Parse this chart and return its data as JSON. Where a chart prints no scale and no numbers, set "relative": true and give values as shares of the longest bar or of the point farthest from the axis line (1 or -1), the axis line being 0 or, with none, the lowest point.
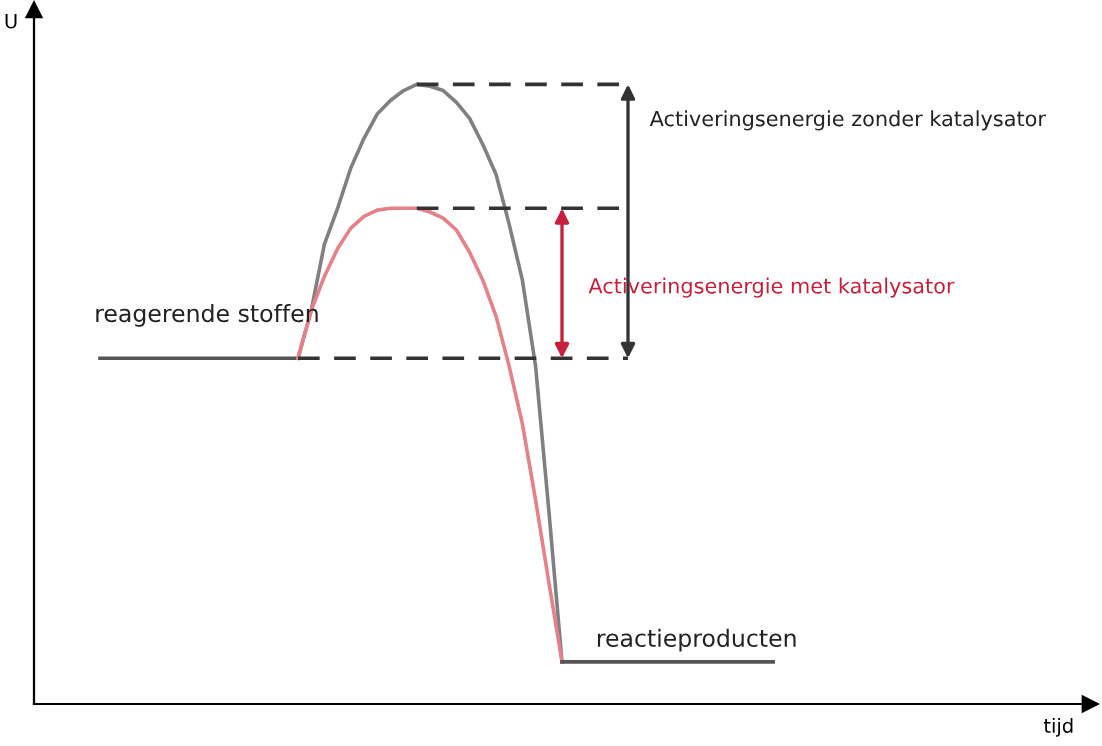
{
  "chart_data": {
    "type": "line",
    "relative": true,
    "xlabel": "tijd",
    "ylabel": "U",
    "categories": [
      null,
      null,
      null,
      null,
      null,
      null,
      null,
      null,
      null,
      null,
      null,
      null,
      null,
      null,
      null,
      null,
      null,
      null,
      null,
      null,
      null,
      null,
      null,
      null,
      null,
      null,
      null,
      null,
      null,
      null,
      null,
      null,
      null,
      null,
      null,
      null,
      null,
      null,
      null,
      null,
      null,
      null,
      null,
      null,
      null,
      null,
      null,
      null,
      null,
      null,
      null,
      null,
      null,
      null,
      null,
      null,
      null,
      null,
      null,
      null,
      null,
      null,
      null,
      null,
      null,
      null,
      null,
      null,
      null,
      null,
      null,
      null,
      null,
      null,
      null,
      null,
      null,
      null,
      null,
      null,
      null
    ],
    "series": [
      {
        "color": "#555555",
        "values": [
          null,
          null,
          null,
          null,
          null,
          0.558,
          0.558,
          0.558,
          0.558,
          0.558,
          0.558,
          0.558,
          0.558,
          0.558,
          0.558,
          0.558,
          0.558,
          0.558,
          0.558,
          0.558,
          0.558,
          null,
          null,
          null,
          null,
          null,
          null,
          null,
          null,
          null,
          null,
          null,
          null,
          null,
          null,
          null,
          null,
          null,
          null,
          null,
          null,
          null,
          null,
          null,
          null,
          null,
          null,
          null,
          null,
          null,
          null,
          null,
          null,
          null,
          null,
          null,
          null,
          null,
          null,
          null,
          null,
          null,
          null,
          null,
          null,
          null,
          null,
          null,
          null,
          null,
          null,
          null,
          null,
          null,
          null,
          null,
          null,
          null,
          null,
          null,
          null
        ]
      },
      {
        "color": "#808080",
        "values": [
          null,
          null,
          null,
          null,
          null,
          null,
          null,
          null,
          null,
          null,
          null,
          null,
          null,
          null,
          null,
          null,
          null,
          null,
          null,
          null,
          0.558,
          0.635,
          0.742,
          0.8,
          0.865,
          0.913,
          0.952,
          0.974,
          0.99,
          1,
          0.997,
          0.99,
          0.971,
          0.945,
          0.903,
          0.855,
          0.774,
          0.684,
          0.545,
          0.313,
          0.068,
          null,
          null,
          null,
          null,
          null,
          null,
          null,
          null,
          null,
          null,
          null,
          null,
          null,
          null,
          null,
          null,
          null,
          null,
          null,
          null,
          null,
          null,
          null,
          null,
          null,
          null,
          null,
          null,
          null,
          null,
          null,
          null,
          null,
          null,
          null,
          null,
          null,
          null,
          null,
          null
        ]
      },
      {
        "color": "#e8808a",
        "values": [
          null,
          null,
          null,
          null,
          null,
          null,
          null,
          null,
          null,
          null,
          null,
          null,
          null,
          null,
          null,
          null,
          null,
          null,
          null,
          null,
          0.558,
          0.635,
          0.69,
          0.735,
          0.768,
          0.787,
          0.797,
          0.8,
          0.8,
          0.8,
          0.794,
          0.784,
          0.765,
          0.729,
          0.684,
          0.626,
          0.545,
          0.452,
          0.329,
          0.197,
          0.068,
          null,
          null,
          null,
          null,
          null,
          null,
          null,
          null,
          null,
          null,
          null,
          null,
          null,
          null,
          null,
          null,
          null,
          null,
          null,
          null,
          null,
          null,
          null,
          null,
          null,
          null,
          null,
          null,
          null,
          null,
          null,
          null,
          null,
          null,
          null,
          null,
          null,
          null,
          null,
          null
        ]
      },
      {
        "color": "#555555",
        "values": [
          null,
          null,
          null,
          null,
          null,
          null,
          null,
          null,
          null,
          null,
          null,
          null,
          null,
          null,
          null,
          null,
          null,
          null,
          null,
          null,
          null,
          null,
          null,
          null,
          null,
          null,
          null,
          null,
          null,
          null,
          null,
          null,
          null,
          null,
          null,
          null,
          null,
          null,
          null,
          null,
          0.068,
          0.068,
          0.068,
          0.068,
          0.068,
          0.068,
          0.068,
          0.068,
          0.068,
          0.068,
          0.068,
          0.068,
          0.068,
          0.068,
          0.068,
          0.068,
          0.068,
          null,
          null,
          null,
          null,
          null,
          null,
          null,
          null,
          null,
          null,
          null,
          null,
          null,
          null,
          null,
          null,
          null,
          null,
          null,
          null,
          null,
          null,
          null,
          null
        ]
      },
      {
        "color": "#333333",
        "line_style": "dashed",
        "values": [
          null,
          null,
          null,
          null,
          null,
          null,
          null,
          null,
          null,
          null,
          null,
          null,
          null,
          null,
          null,
          null,
          null,
          null,
          null,
          null,
          null,
          null,
          null,
          null,
          null,
          null,
          null,
          null,
          null,
          1,
          1,
          1,
          1,
          1,
          1,
          1,
          1,
          1,
          1,
          1,
          1,
          1,
          1,
          1,
          1,
          1,
          null,
          null,
          null,
          null,
          null,
          null,
          null,
          null,
          null,
          null,
          null,
          null,
          null,
          null,
          null,
          null,
          null,
          null,
          null,
          null,
          null,
          null,
          null,
          null,
          null,
          null,
          null,
          null,
          null,
          null,
          null,
          null,
          null,
          null,
          null
        ]
      },
      {
        "color": "#333333",
        "line_style": "dashed",
        "values": [
          null,
          null,
          null,
          null,
          null,
          null,
          null,
          null,
          null,
          null,
          null,
          null,
          null,
          null,
          null,
          null,
          null,
          null,
          null,
          null,
          null,
          null,
          null,
          null,
          null,
          null,
          null,
          null,
          null,
          0.8,
          0.8,
          0.8,
          0.8,
          0.8,
          0.8,
          0.8,
          0.8,
          0.8,
          0.8,
          0.8,
          0.8,
          0.8,
          0.8,
          0.8,
          0.8,
          0.8,
          null,
          null,
          null,
          null,
          null,
          null,
          null,
          null,
          null,
          null,
          null,
          null,
          null,
          null,
          null,
          null,
          null,
          null,
          null,
          null,
          null,
          null,
          null,
          null,
          null,
          null,
          null,
          null,
          null,
          null,
          null,
          null,
          null,
          null,
          null
        ]
      },
      {
        "color": "#333333",
        "line_style": "dashed",
        "values": [
          null,
          null,
          null,
          null,
          null,
          null,
          null,
          null,
          null,
          null,
          null,
          null,
          null,
          null,
          null,
          null,
          null,
          null,
          null,
          null,
          0.558,
          0.558,
          0.558,
          0.558,
          0.558,
          0.558,
          0.558,
          0.558,
          0.558,
          0.558,
          0.558,
          0.558,
          0.558,
          0.558,
          0.558,
          0.558,
          0.558,
          0.558,
          0.558,
          0.558,
          0.558,
          0.558,
          0.558,
          0.558,
          0.558,
          0.558,
          null,
          null,
          null,
          null,
          null,
          null,
          null,
          null,
          null,
          null,
          null,
          null,
          null,
          null,
          null,
          null,
          null,
          null,
          null,
          null,
          null,
          null,
          null,
          null,
          null,
          null,
          null,
          null,
          null,
          null,
          null,
          null,
          null,
          null,
          null
        ]
      }
    ],
    "annotations": [
      "Activeringsenergie zonder katalysator",
      "Activeringsenergie met katalysator",
      "reagerende stoffen",
      "reactieproducten"
    ]
  }
}
